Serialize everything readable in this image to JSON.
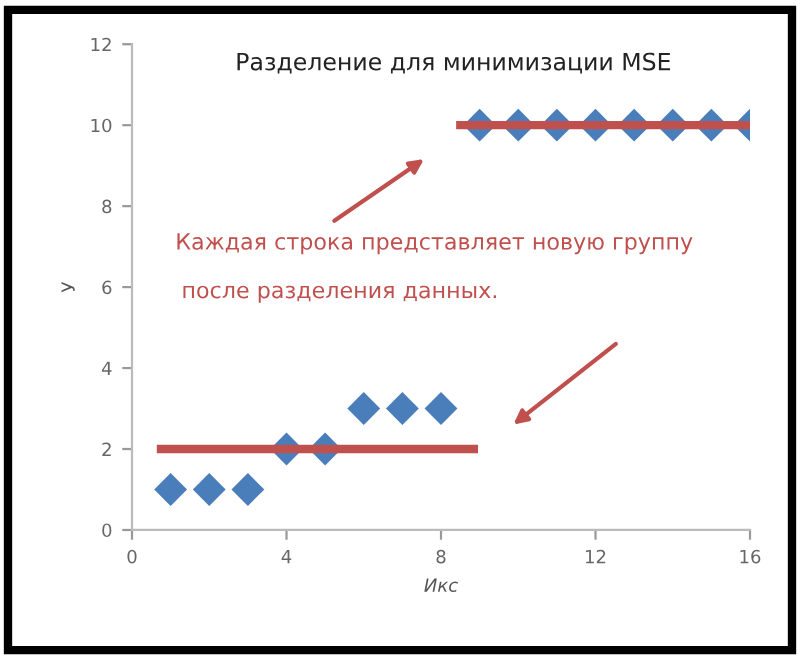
{
  "chart_data": {
    "type": "scatter",
    "title": "Разделение для минимизации MSE",
    "xlabel": "Икс",
    "ylabel": "У",
    "annotations": [
      "Каждая строка представляет новую группу",
      "после разделения данных."
    ],
    "series": [
      {
        "color": "#4a7ebb",
        "marker": "diamond",
        "x": [
          1,
          2,
          3,
          4,
          5,
          6,
          7,
          8,
          9,
          10,
          11,
          12,
          13,
          14,
          15,
          16
        ],
        "values": [
          1,
          1,
          1,
          2,
          2,
          3,
          3,
          3,
          10,
          10,
          10,
          10,
          10,
          10,
          10,
          10
        ]
      },
      {
        "type": "line",
        "color": "#c0504d",
        "marker": "none",
        "x": [
          0.75,
          8.85
        ],
        "values": [
          2,
          2
        ]
      },
      {
        "type": "line",
        "color": "#c0504d",
        "marker": "none",
        "x": [
          8.5,
          16
        ],
        "values": [
          10,
          10
        ]
      }
    ],
    "xlim": [
      0,
      16
    ],
    "xticks": [
      0,
      4,
      8,
      12,
      16
    ],
    "ylim": [
      0,
      12
    ],
    "yticks": [
      0,
      2,
      4,
      6,
      8,
      10,
      12
    ],
    "grid": false,
    "legend": false
  }
}
